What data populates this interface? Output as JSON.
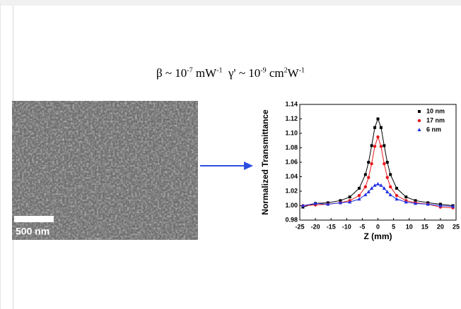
{
  "formula": [
    {
      "text": "β ~ 10"
    },
    {
      "sup": "-7"
    },
    {
      "text": " mW"
    },
    {
      "sup": "-1"
    },
    {
      "text": "  γ' ~ 10"
    },
    {
      "sup": "-9"
    },
    {
      "text": " cm"
    },
    {
      "sup": "2"
    },
    {
      "text": "W"
    },
    {
      "sup": "-1"
    }
  ],
  "image": {
    "scale_bar": "500 nm"
  },
  "chart_data": {
    "type": "scatter",
    "x_label": "Z (mm)",
    "y_label": "Normalized Transmittance",
    "x": [
      -24,
      -20,
      -16,
      -12,
      -9,
      -6,
      -4,
      -3,
      -2,
      -1,
      0,
      1,
      2,
      3,
      4,
      6,
      9,
      12,
      16,
      20,
      24
    ],
    "series": [
      {
        "name": "10 nm",
        "color": "#000000",
        "marker": "square",
        "values": [
          0.998,
          1.003,
          1.004,
          1.007,
          1.012,
          1.024,
          1.043,
          1.06,
          1.083,
          1.108,
          1.12,
          1.108,
          1.083,
          1.06,
          1.043,
          1.024,
          1.012,
          1.007,
          1.004,
          1.002,
          1.0
        ]
      },
      {
        "name": "17 nm",
        "color": "#e8161b",
        "marker": "circle",
        "values": [
          1.0,
          1.001,
          1.002,
          1.004,
          1.007,
          1.014,
          1.026,
          1.039,
          1.058,
          1.082,
          1.095,
          1.082,
          1.058,
          1.039,
          1.026,
          1.014,
          1.007,
          1.004,
          1.002,
          0.998,
          0.997
        ]
      },
      {
        "name": "6 nm",
        "color": "#1f2fe0",
        "marker": "triangle",
        "values": [
          1.0,
          1.003,
          1.002,
          1.004,
          1.005,
          1.009,
          1.015,
          1.019,
          1.024,
          1.028,
          1.03,
          1.028,
          1.024,
          1.019,
          1.015,
          1.009,
          1.005,
          1.003,
          1.002,
          1.0,
          0.999
        ]
      }
    ],
    "xlim": [
      -25,
      25
    ],
    "xticks": [
      -25,
      -20,
      -15,
      -10,
      -5,
      0,
      5,
      10,
      15,
      20,
      25
    ],
    "ylim": [
      0.98,
      1.14
    ],
    "yticks": [
      0.98,
      {
        "value": 1,
        "label": "1.00"
      },
      1.02,
      1.04,
      1.06,
      1.08,
      {
        "value": 1.1,
        "label": "1.10"
      },
      1.12,
      1.14
    ],
    "legend": "upper right"
  }
}
